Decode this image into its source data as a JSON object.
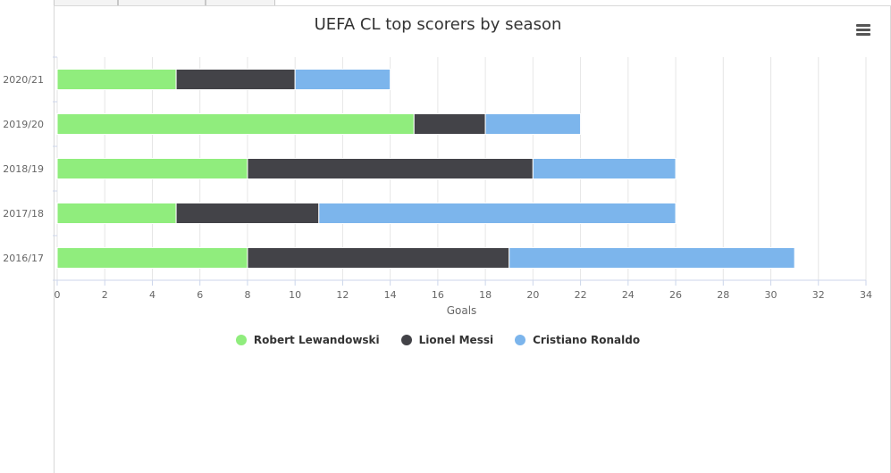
{
  "toolbar": {
    "tabs": [
      "",
      "",
      ""
    ]
  },
  "chart_data": {
    "type": "bar",
    "orientation": "horizontal",
    "stacked": true,
    "title": "UEFA CL top scorers by season",
    "xlabel": "Goals",
    "ylabel": "",
    "xlim": [
      0,
      34
    ],
    "x_ticks": [
      "0",
      "2",
      "4",
      "6",
      "8",
      "10",
      "12",
      "14",
      "16",
      "18",
      "20",
      "22",
      "24",
      "26",
      "28",
      "30",
      "32",
      "34"
    ],
    "categories": [
      "2020/21",
      "2019/20",
      "2018/19",
      "2017/18",
      "2016/17"
    ],
    "series": [
      {
        "name": "Robert Lewandowski",
        "color": "#90ed7d",
        "values": [
          5,
          15,
          8,
          5,
          8
        ]
      },
      {
        "name": "Lionel Messi",
        "color": "#434348",
        "values": [
          5,
          3,
          12,
          6,
          11
        ]
      },
      {
        "name": "Cristiano Ronaldo",
        "color": "#7cb5ec",
        "values": [
          4,
          4,
          6,
          15,
          12
        ]
      }
    ],
    "grid": true,
    "legend_position": "bottom-center"
  }
}
